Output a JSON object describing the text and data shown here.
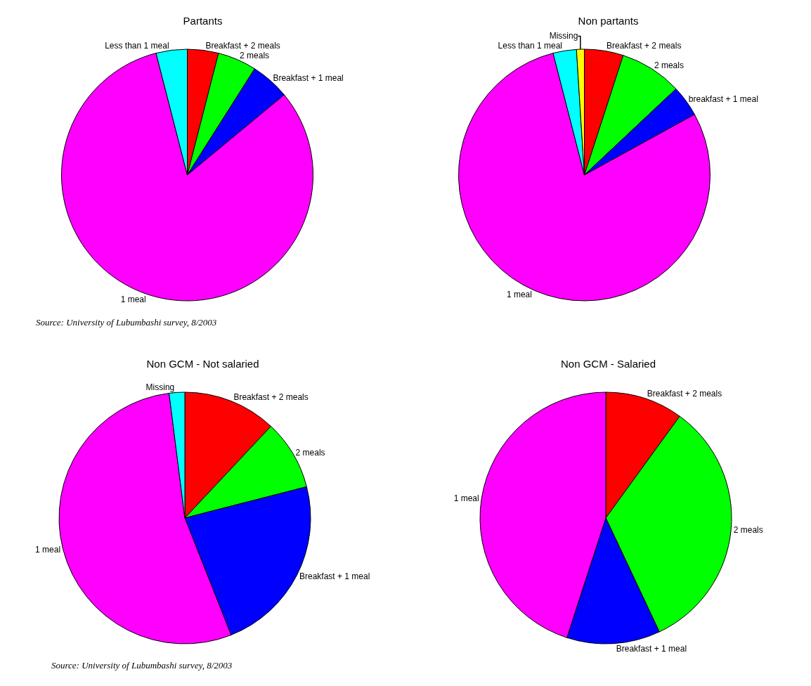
{
  "chart_data": [
    {
      "type": "pie",
      "title": "Partants",
      "categories": [
        "Breakfast + 2 meals",
        "2 meals",
        "Breakfast + 1 meal",
        "1 meal",
        "Less than 1 meal"
      ],
      "values": [
        4,
        5,
        5,
        82,
        4
      ],
      "colors": [
        "#ff0000",
        "#00ff00",
        "#0000ff",
        "#ff00ff",
        "#00ffff"
      ],
      "legend": false,
      "annotations": [
        "Source: University of Lubumbashi survey, 8/2003"
      ]
    },
    {
      "type": "pie",
      "title": "Non partants",
      "categories": [
        "Breakfast + 2 meals",
        "2 meals",
        "breakfast + 1 meal",
        "1 meal",
        "Less than 1 meal",
        "Missing"
      ],
      "values": [
        5,
        8,
        4,
        79,
        3,
        1
      ],
      "colors": [
        "#ff0000",
        "#00ff00",
        "#0000ff",
        "#ff00ff",
        "#00ffff",
        "#ffff00"
      ],
      "legend": false
    },
    {
      "type": "pie",
      "title": "Non GCM - Not salaried",
      "categories": [
        "Breakfast + 2 meals",
        "2 meals",
        "Breakfast + 1 meal",
        "1 meal",
        "Missing"
      ],
      "values": [
        12,
        9,
        23,
        54,
        2
      ],
      "colors": [
        "#ff0000",
        "#00ff00",
        "#0000ff",
        "#ff00ff",
        "#00ffff"
      ],
      "legend": false,
      "annotations": [
        "Source: University of Lubumbashi survey, 8/2003"
      ]
    },
    {
      "type": "pie",
      "title": "Non GCM - Salaried",
      "categories": [
        "Breakfast + 2 meals",
        "2 meals",
        "Breakfast + 1 meal",
        "1 meal"
      ],
      "values": [
        10,
        33,
        12,
        45
      ],
      "colors": [
        "#ff0000",
        "#00ff00",
        "#0000ff",
        "#ff00ff"
      ],
      "legend": false
    }
  ]
}
